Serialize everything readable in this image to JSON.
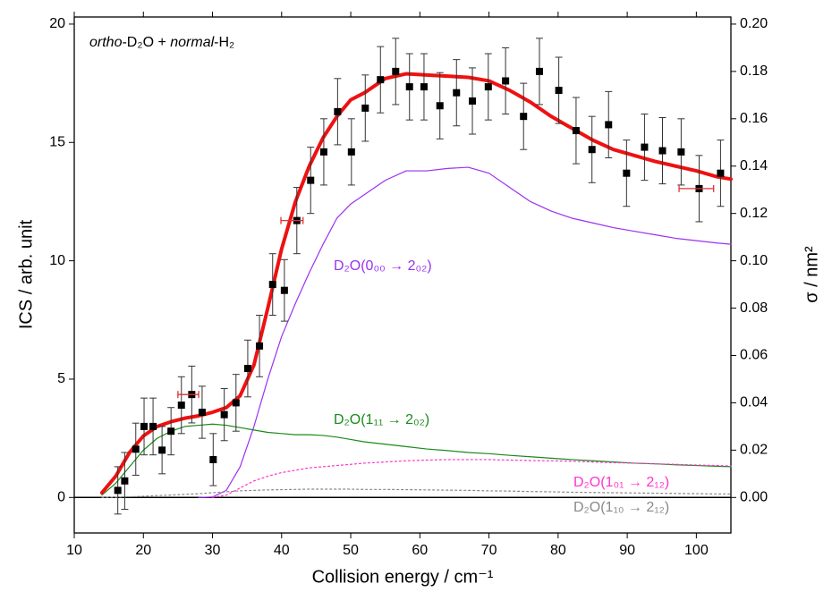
{
  "chart_data": {
    "type": "line",
    "annotation_parts": [
      "ortho",
      "-D₂O + ",
      "normal",
      "-H₂"
    ],
    "x_label": "Collision energy / cm⁻¹",
    "y_label": "ICS / arb. unit",
    "y2_label": "σ / nm²",
    "xlim": [
      10,
      105
    ],
    "xticks": [
      10,
      20,
      30,
      40,
      50,
      60,
      70,
      80,
      90,
      100
    ],
    "ylim": [
      -1.5,
      20.3
    ],
    "yticks": [
      0,
      5,
      10,
      15,
      20
    ],
    "y2lim": [
      -0.015,
      0.203
    ],
    "y2ticks": [
      {
        "value": 0,
        "label": "0.00"
      },
      {
        "value": 0.02,
        "label": "0.02"
      },
      {
        "value": 0.04,
        "label": "0.04"
      },
      {
        "value": 0.06,
        "label": "0.06"
      },
      {
        "value": 0.08,
        "label": "0.08"
      },
      {
        "value": 0.1,
        "label": "0.10"
      },
      {
        "value": 0.12,
        "label": "0.12"
      },
      {
        "value": 0.14,
        "label": "0.14"
      },
      {
        "value": 0.16,
        "label": "0.16"
      },
      {
        "value": 0.18,
        "label": "0.18"
      },
      {
        "value": 0.2,
        "label": "0.20"
      }
    ],
    "x": [
      14,
      16,
      18,
      20,
      22,
      24,
      26,
      28,
      30,
      32,
      34,
      36,
      38,
      40,
      42,
      44,
      46,
      48,
      50,
      52,
      55,
      58,
      61,
      64,
      67,
      70,
      73,
      76,
      79,
      82,
      85,
      88,
      91,
      94,
      97,
      100,
      103,
      105
    ],
    "series": [
      {
        "color": "#9b30f0",
        "linewidth": 1.2,
        "linestyle": "solid",
        "name": "D₂O(0₀₀ → 2₀₂)",
        "values": [
          null,
          null,
          null,
          null,
          null,
          null,
          null,
          0,
          0.02,
          0.3,
          1.3,
          3.0,
          5.0,
          6.8,
          8.2,
          9.5,
          10.7,
          11.8,
          12.4,
          12.8,
          13.4,
          13.8,
          13.8,
          13.9,
          13.95,
          13.7,
          13.1,
          12.5,
          12.1,
          11.8,
          11.6,
          11.4,
          11.25,
          11.1,
          10.95,
          10.85,
          10.75,
          10.7
        ]
      },
      {
        "color": "#1a8a1a",
        "linewidth": 1.2,
        "linestyle": "solid",
        "name": "D₂O(1₁₁ → 2₀₂)",
        "values": [
          0.1,
          0.6,
          1.3,
          2.0,
          2.5,
          2.8,
          3.0,
          3.05,
          3.1,
          3.05,
          2.95,
          2.85,
          2.75,
          2.7,
          2.65,
          2.65,
          2.62,
          2.55,
          2.45,
          2.35,
          2.25,
          2.15,
          2.05,
          1.98,
          1.9,
          1.85,
          1.78,
          1.72,
          1.66,
          1.6,
          1.55,
          1.5,
          1.45,
          1.42,
          1.38,
          1.35,
          1.32,
          1.3
        ]
      },
      {
        "color": "#ff33cc",
        "linewidth": 1.2,
        "linestyle": "dotted",
        "name": "D₂O(1₀₁ → 2₁₂)",
        "values": [
          null,
          null,
          null,
          null,
          null,
          null,
          null,
          null,
          0,
          0.1,
          0.4,
          0.7,
          0.9,
          1.05,
          1.15,
          1.25,
          1.3,
          1.35,
          1.4,
          1.45,
          1.5,
          1.55,
          1.58,
          1.6,
          1.6,
          1.6,
          1.58,
          1.56,
          1.55,
          1.53,
          1.5,
          1.47,
          1.45,
          1.42,
          1.4,
          1.37,
          1.35,
          1.33
        ]
      },
      {
        "color": "#888888",
        "linewidth": 1.2,
        "linestyle": "dotted",
        "name": "D₂O(1₁₀ → 2₁₂)",
        "values": [
          0,
          0.01,
          0.03,
          0.05,
          0.08,
          0.1,
          0.13,
          0.16,
          0.2,
          0.24,
          0.28,
          0.3,
          0.32,
          0.33,
          0.34,
          0.35,
          0.35,
          0.35,
          0.35,
          0.34,
          0.34,
          0.33,
          0.32,
          0.31,
          0.3,
          0.28,
          0.27,
          0.25,
          0.24,
          0.22,
          0.21,
          0.2,
          0.19,
          0.18,
          0.17,
          0.16,
          0.15,
          0.15
        ]
      },
      {
        "color": "#ee1111",
        "linewidth": 4,
        "linestyle": "solid",
        "values": [
          0.2,
          0.9,
          1.9,
          2.6,
          3.0,
          3.2,
          3.35,
          3.45,
          3.6,
          3.8,
          4.3,
          5.6,
          8.0,
          10.5,
          12.5,
          14.0,
          15.2,
          16.1,
          16.8,
          17.1,
          17.7,
          17.9,
          17.85,
          17.8,
          17.75,
          17.6,
          17.2,
          16.7,
          16.1,
          15.6,
          15.1,
          14.7,
          14.45,
          14.2,
          14.0,
          13.8,
          13.55,
          13.45
        ]
      }
    ],
    "measured": {
      "color": "#000000",
      "x": [
        16.3,
        17.3,
        18.9,
        20.1,
        21.4,
        22.7,
        24.0,
        25.5,
        27.0,
        28.5,
        30.1,
        31.7,
        33.4,
        35.1,
        36.8,
        38.7,
        40.4,
        42.2,
        44.2,
        46.1,
        48.1,
        50.1,
        52.1,
        54.3,
        56.5,
        58.5,
        60.6,
        62.9,
        65.3,
        67.6,
        69.9,
        72.4,
        75.0,
        77.3,
        80.1,
        82.6,
        84.9,
        87.3,
        89.9,
        92.5,
        95.1,
        97.8,
        100.4,
        103.5
      ],
      "values": [
        0.3,
        0.7,
        2.04,
        3.0,
        3.0,
        2.0,
        2.8,
        3.9,
        4.35,
        3.6,
        1.6,
        3.5,
        4.0,
        5.45,
        6.4,
        9.0,
        8.75,
        11.7,
        13.4,
        14.6,
        16.3,
        14.6,
        16.45,
        17.65,
        18.0,
        17.35,
        17.35,
        16.55,
        17.1,
        16.75,
        17.35,
        17.6,
        16.1,
        18.0,
        17.2,
        15.5,
        14.7,
        15.75,
        13.7,
        14.8,
        14.65,
        14.6,
        13.05,
        13.7
      ],
      "errors": [
        1.0,
        1.2,
        1.1,
        1.2,
        1.2,
        1.0,
        1.0,
        1.2,
        1.2,
        1.1,
        1.1,
        1.1,
        1.2,
        1.2,
        1.3,
        1.3,
        1.3,
        1.4,
        1.4,
        1.4,
        1.4,
        1.4,
        1.4,
        1.4,
        1.4,
        1.4,
        1.4,
        1.4,
        1.4,
        1.4,
        1.4,
        1.4,
        1.4,
        1.4,
        1.4,
        1.4,
        1.4,
        1.4,
        1.4,
        1.4,
        1.4,
        1.4,
        1.4,
        1.4
      ]
    },
    "x_error_bars": {
      "color": "#dd3333",
      "x": [
        26.5,
        41.5,
        100.0
      ],
      "values": [
        4.35,
        11.7,
        13.05
      ],
      "x_errors": [
        1.5,
        1.6,
        2.5
      ]
    }
  }
}
